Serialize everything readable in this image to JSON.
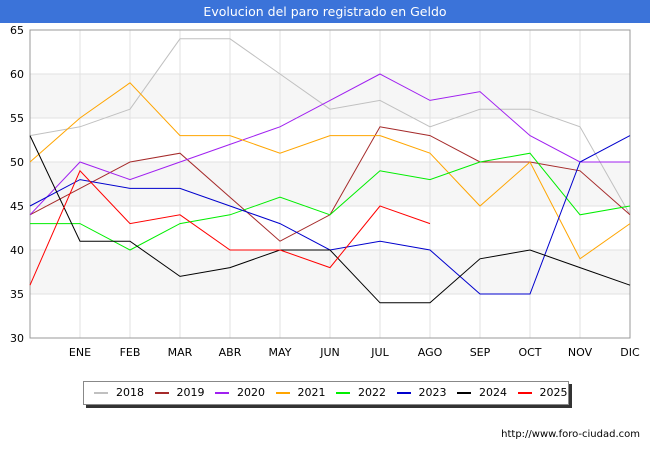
{
  "header": {
    "title": "Evolucion del paro registrado en Geldo"
  },
  "source_text": "http://www.foro-ciudad.com",
  "chart_data": {
    "type": "line",
    "title": "Evolucion del paro registrado en Geldo",
    "categories": [
      "",
      "ENE",
      "FEB",
      "MAR",
      "ABR",
      "MAY",
      "JUN",
      "JUL",
      "AGO",
      "SEP",
      "OCT",
      "NOV",
      "DIC"
    ],
    "ylim": [
      30,
      65
    ],
    "yticks": [
      30,
      35,
      40,
      45,
      50,
      55,
      60,
      65
    ],
    "grid": true,
    "legend_position": "bottom",
    "series": [
      {
        "name": "2018",
        "color": "#c0c0c0",
        "values": [
          53,
          54,
          56,
          64,
          64,
          60,
          56,
          57,
          54,
          56,
          56,
          54,
          44
        ]
      },
      {
        "name": "2019",
        "color": "#a52a2a",
        "values": [
          44,
          47,
          50,
          51,
          46,
          41,
          44,
          54,
          53,
          50,
          50,
          49,
          44
        ]
      },
      {
        "name": "2020",
        "color": "#a020f0",
        "values": [
          44,
          50,
          48,
          50,
          52,
          54,
          57,
          60,
          57,
          58,
          53,
          50,
          50
        ]
      },
      {
        "name": "2021",
        "color": "#ffa500",
        "values": [
          50,
          55,
          59,
          53,
          53,
          51,
          53,
          53,
          51,
          45,
          50,
          39,
          43
        ]
      },
      {
        "name": "2022",
        "color": "#00ee00",
        "values": [
          43,
          43,
          40,
          43,
          44,
          46,
          44,
          49,
          48,
          50,
          51,
          44,
          45
        ]
      },
      {
        "name": "2023",
        "color": "#0000cd",
        "values": [
          45,
          48,
          47,
          47,
          45,
          43,
          40,
          41,
          40,
          35,
          35,
          50,
          53
        ]
      },
      {
        "name": "2024",
        "color": "#000000",
        "values": [
          53,
          41,
          41,
          37,
          38,
          40,
          40,
          34,
          34,
          39,
          40,
          38,
          36
        ]
      },
      {
        "name": "2025",
        "color": "#ff0000",
        "values": [
          36,
          49,
          43,
          44,
          40,
          40,
          38,
          45,
          43,
          null,
          null,
          null,
          null
        ]
      }
    ]
  }
}
